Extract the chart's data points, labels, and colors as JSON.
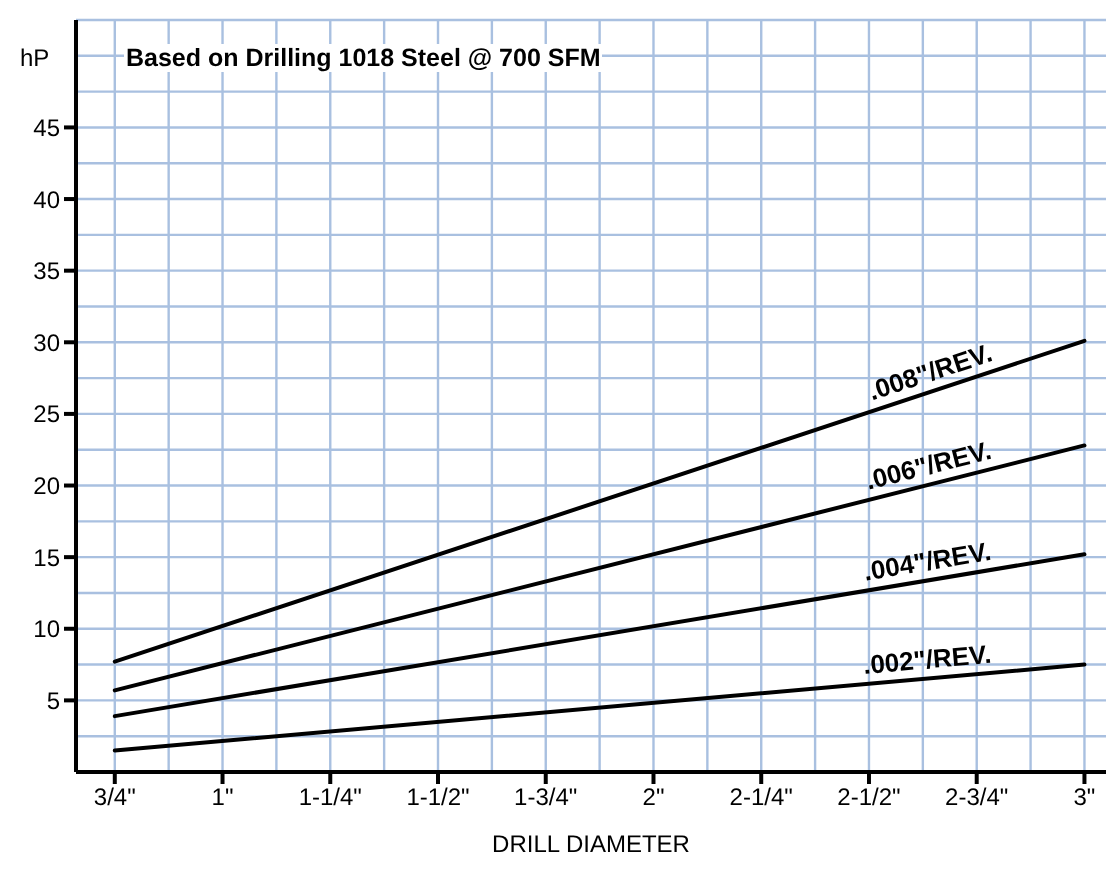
{
  "chart_data": {
    "type": "line",
    "title": "Based on Drilling 1018 Steel @ 700 SFM",
    "xlabel": "DRILL DIAMETER",
    "ylabel": "hP",
    "xlim": [
      0.66,
      3.05
    ],
    "xticks": [
      {
        "value": 0.75,
        "label": "3/4\""
      },
      {
        "value": 1,
        "label": "1\""
      },
      {
        "value": 1.25,
        "label": "1-1/4\""
      },
      {
        "value": 1.5,
        "label": "1-1/2\""
      },
      {
        "value": 1.75,
        "label": "1-3/4\""
      },
      {
        "value": 2,
        "label": "2\""
      },
      {
        "value": 2.25,
        "label": "2-1/4\""
      },
      {
        "value": 2.5,
        "label": "2-1/2\""
      },
      {
        "value": 2.75,
        "label": "2-3/4\""
      },
      {
        "value": 3,
        "label": "3\""
      }
    ],
    "ylim": [
      0,
      52.5
    ],
    "yticks": [
      5,
      10,
      15,
      20,
      25,
      30,
      35,
      40,
      45
    ],
    "grid": true,
    "marker": "none",
    "line_style": "solid",
    "x": [
      0.75,
      3
    ],
    "series": [
      {
        "name": ".008\"/REV.",
        "color": "#000000",
        "values": [
          7.7,
          30.1
        ]
      },
      {
        "name": ".006\"/REV.",
        "color": "#000000",
        "values": [
          5.7,
          22.8
        ]
      },
      {
        "name": ".004\"/REV.",
        "color": "#000000",
        "values": [
          3.9,
          15.2
        ]
      },
      {
        "name": ".002\"/REV.",
        "color": "#000000",
        "values": [
          1.5,
          7.5
        ]
      }
    ]
  }
}
